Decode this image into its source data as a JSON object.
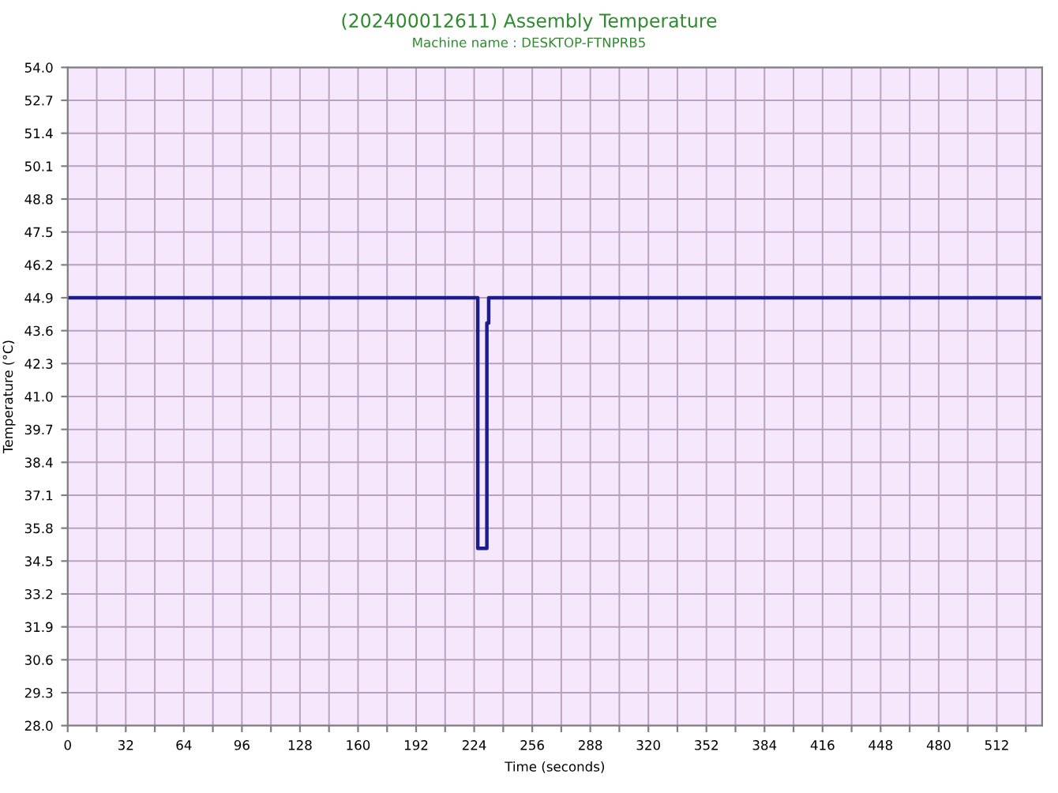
{
  "chart_data": {
    "type": "step",
    "title": "(202400012611) Assembly Temperature",
    "subtitle": "Machine name : DESKTOP-FTNPRB5",
    "xlabel": "Time (seconds)",
    "ylabel": "Temperature (°C)",
    "x": [
      0,
      226,
      231,
      232,
      537
    ],
    "series": [
      {
        "color": "#1c1c8c",
        "values": [
          44.9,
          35.0,
          43.9,
          44.9,
          44.9
        ]
      }
    ],
    "xlim": [
      0,
      537
    ],
    "ylim": [
      28.0,
      54.0
    ],
    "xticks": [
      0,
      {
        "value": 16,
        "label": null
      },
      32,
      {
        "value": 48,
        "label": null
      },
      64,
      {
        "value": 80,
        "label": null
      },
      96,
      {
        "value": 112,
        "label": null
      },
      128,
      {
        "value": 144,
        "label": null
      },
      160,
      {
        "value": 176,
        "label": null
      },
      192,
      {
        "value": 208,
        "label": null
      },
      224,
      {
        "value": 240,
        "label": null
      },
      256,
      {
        "value": 272,
        "label": null
      },
      288,
      {
        "value": 304,
        "label": null
      },
      320,
      {
        "value": 336,
        "label": null
      },
      352,
      {
        "value": 368,
        "label": null
      },
      384,
      {
        "value": 400,
        "label": null
      },
      416,
      {
        "value": 432,
        "label": null
      },
      448,
      {
        "value": 464,
        "label": null
      },
      480,
      {
        "value": 496,
        "label": null
      },
      512,
      {
        "value": 528,
        "label": null
      }
    ],
    "yticks": [
      {
        "value": 28,
        "label": "28.0"
      },
      29.3,
      30.6,
      31.9,
      33.2,
      34.5,
      35.8,
      37.1,
      38.4,
      39.7,
      {
        "value": 41,
        "label": "41.0"
      },
      42.3,
      43.6,
      44.9,
      46.2,
      47.5,
      48.8,
      50.1,
      51.4,
      52.7,
      {
        "value": 54,
        "label": "54.0"
      }
    ],
    "grid": true
  }
}
